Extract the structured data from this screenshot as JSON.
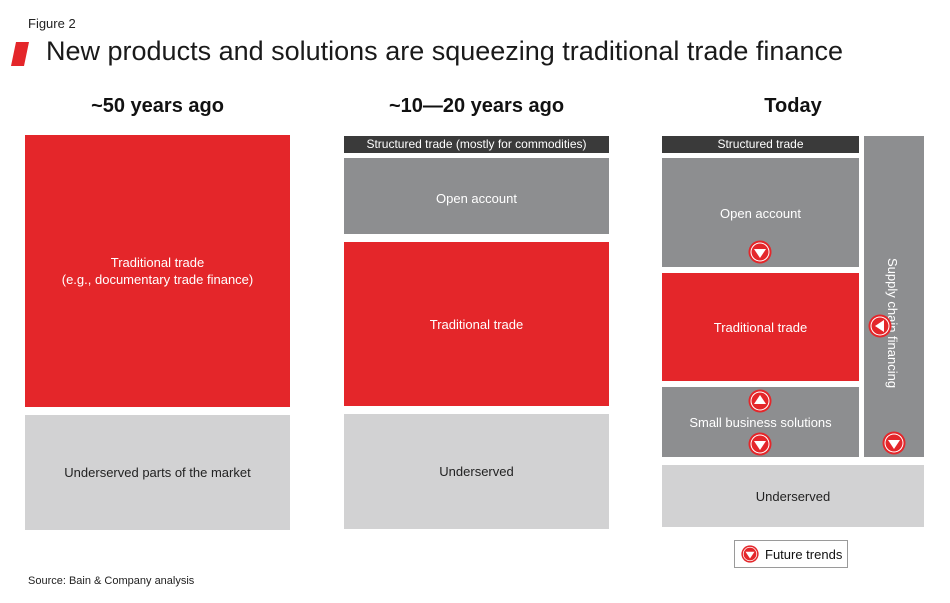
{
  "figure_label": "Figure 2",
  "title": "New products and solutions are squeezing traditional trade finance",
  "colors": {
    "red": "#e4262a",
    "dark_gray": "#8d8e90",
    "light_gray": "#d2d2d3",
    "black_bar": "#3a3a3a"
  },
  "columns": [
    {
      "heading": "~50 years ago",
      "blocks": {
        "traditional": "Traditional trade\n(e.g., documentary trade finance)",
        "underserved": "Underserved parts of the market"
      }
    },
    {
      "heading": "~10—20 years ago",
      "blocks": {
        "structured": "Structured trade (mostly for commodities)",
        "open_account": "Open account",
        "traditional": "Traditional trade",
        "underserved": "Underserved"
      }
    },
    {
      "heading": "Today",
      "blocks": {
        "structured": "Structured trade",
        "open_account": "Open account",
        "traditional": "Traditional trade",
        "small_business": "Small business solutions",
        "supply_chain": "Supply chain financing",
        "underserved": "Underserved"
      },
      "trend_arrows": {
        "open_account": "down",
        "traditional": "left",
        "small_business_top": "up",
        "small_business_bottom": "down",
        "supply_chain": "down"
      }
    }
  ],
  "legend": {
    "label": "Future trends",
    "icon": "down-arrow-circle-icon"
  },
  "source": "Source: Bain & Company analysis"
}
